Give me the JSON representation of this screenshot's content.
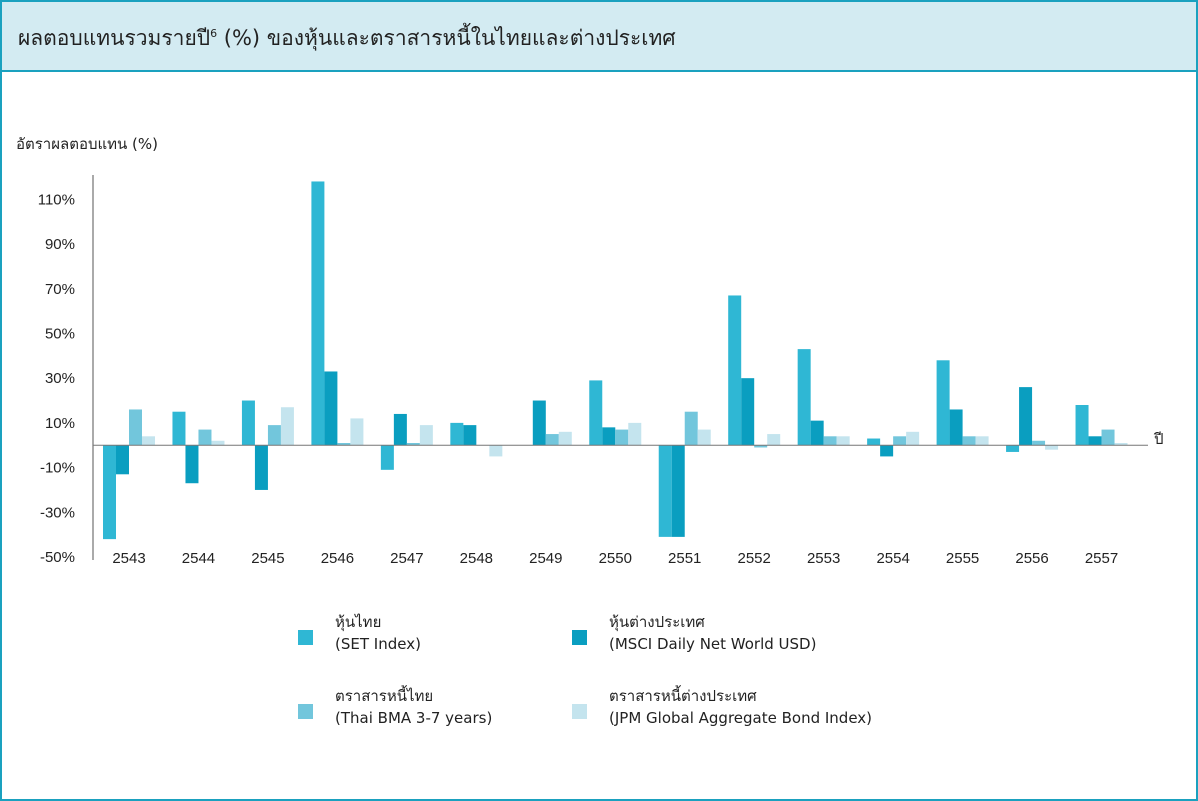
{
  "header": {
    "title": "ผลตอบแทนรวมรายปี",
    "title_sup": "6",
    "title_rest": " (%) ของหุ้นและตราสารหนี้ในไทยและต่างประเทศ"
  },
  "colors": {
    "header_bg": "#d3ebf2",
    "border": "#1aa1bf",
    "series": [
      "#2fb7d4",
      "#0a9ec0",
      "#72c6dc",
      "#c4e4ee"
    ]
  },
  "chart_data": {
    "type": "bar",
    "ylabel": "อัตราผลตอบแทน (%)",
    "xlabel": "ปี",
    "ylim": [
      -50,
      120
    ],
    "yticks": [
      110,
      90,
      70,
      50,
      30,
      10,
      -10,
      -30,
      -50
    ],
    "ytick_labels": [
      "110%",
      "90%",
      "70%",
      "50%",
      "30%",
      "10%",
      "-10%",
      "-30%",
      "-50%"
    ],
    "grid": false,
    "categories": [
      "2543",
      "2544",
      "2545",
      "2546",
      "2547",
      "2548",
      "2549",
      "2550",
      "2551",
      "2552",
      "2553",
      "2554",
      "2555",
      "2556",
      "2557"
    ],
    "series": [
      {
        "name": "หุ้นไทย",
        "subname": "(SET Index)",
        "values": [
          -42,
          15,
          20,
          118,
          -11,
          10,
          0,
          29,
          -41,
          67,
          43,
          3,
          38,
          -3,
          18
        ]
      },
      {
        "name": "หุ้นต่างประเทศ",
        "subname": "(MSCI Daily Net World USD)",
        "values": [
          -13,
          -17,
          -20,
          33,
          14,
          9,
          20,
          8,
          -41,
          30,
          11,
          -5,
          16,
          26,
          4
        ]
      },
      {
        "name": "ตราสารหนี้ไทย",
        "subname": "(Thai BMA 3-7 years)",
        "values": [
          16,
          7,
          9,
          1,
          1,
          0,
          5,
          7,
          15,
          -1,
          4,
          4,
          4,
          2,
          7
        ]
      },
      {
        "name": "ตราสารหนี้ต่างประเทศ",
        "subname": "(JPM Global Aggregate Bond Index)",
        "values": [
          4,
          2,
          17,
          12,
          9,
          -5,
          6,
          10,
          7,
          5,
          4,
          6,
          4,
          -2,
          1
        ]
      }
    ],
    "legend_position": "bottom"
  }
}
